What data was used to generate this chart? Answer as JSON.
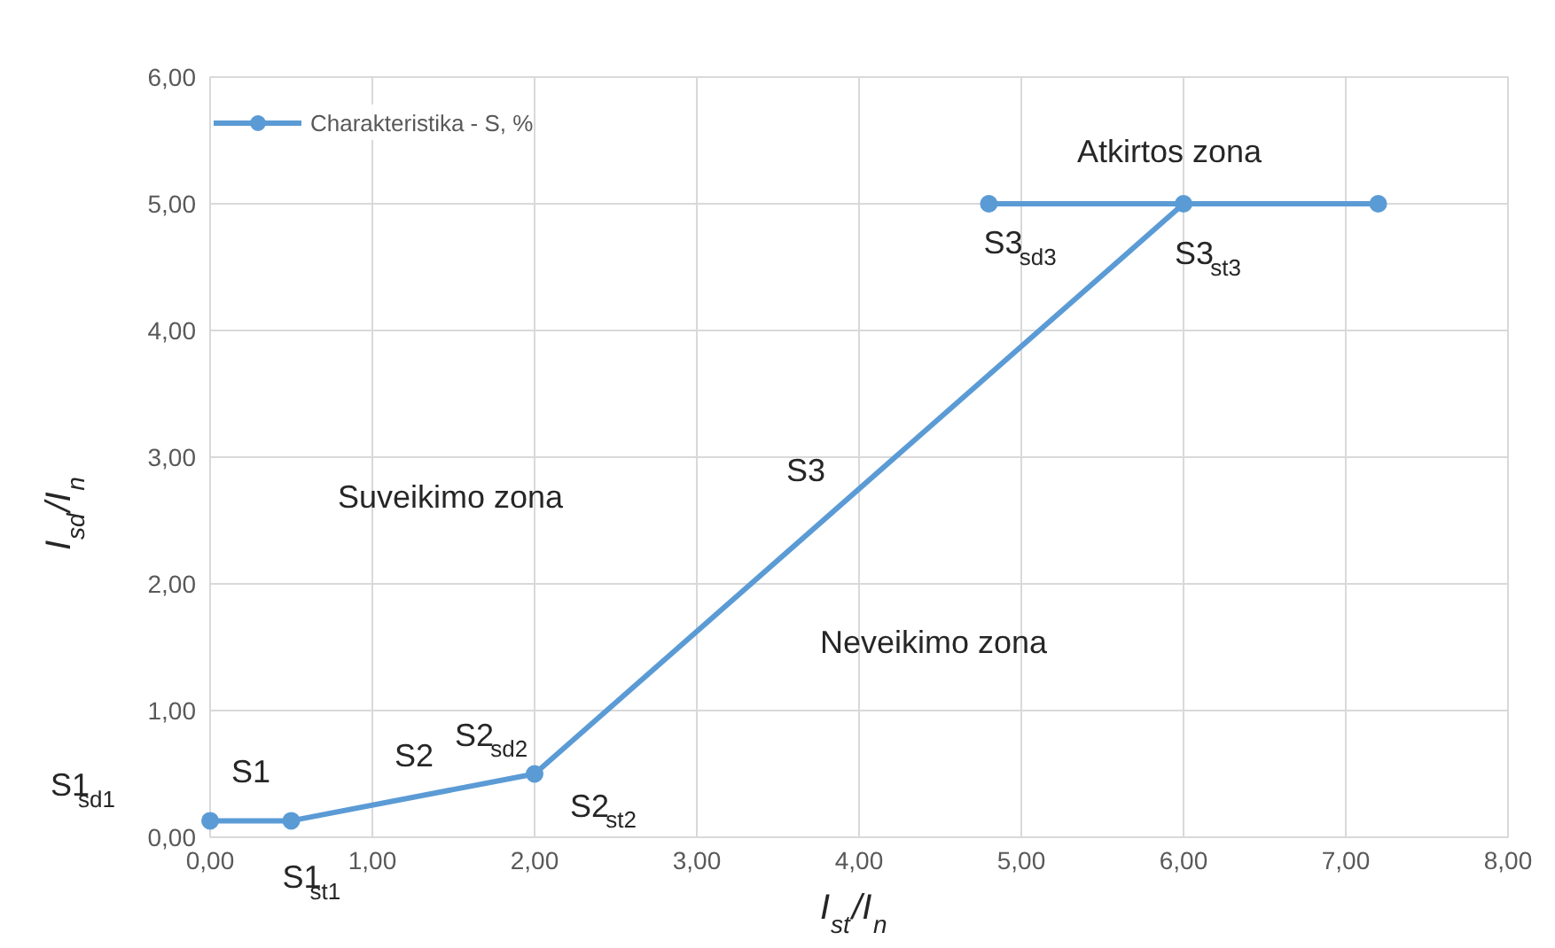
{
  "chart_data": {
    "type": "line",
    "xlabel": "I$_{st}$/I$_{n}$",
    "ylabel": "I$_{sd}$/I$_{n}$",
    "series": [
      {
        "name": "Charakteristika - S, %",
        "color": "#5b9bd5",
        "x": [
          0,
          0.5,
          2,
          6,
          4.8,
          7.2
        ],
        "values": [
          0.13,
          0.13,
          0.5,
          5,
          5,
          5
        ]
      }
    ],
    "xlim": [
      0,
      8
    ],
    "ylim": [
      0,
      6
    ],
    "xticks": [
      {
        "value": 0,
        "label": "0,00"
      },
      {
        "value": 1,
        "label": "1,00"
      },
      {
        "value": 2,
        "label": "2,00"
      },
      {
        "value": 3,
        "label": "3,00"
      },
      {
        "value": 4,
        "label": "4,00"
      },
      {
        "value": 5,
        "label": "5,00"
      },
      {
        "value": 6,
        "label": "6,00"
      },
      {
        "value": 7,
        "label": "7,00"
      },
      {
        "value": 8,
        "label": "8,00"
      }
    ],
    "yticks": [
      {
        "value": 0,
        "label": "0,00"
      },
      {
        "value": 1,
        "label": "1,00"
      },
      {
        "value": 2,
        "label": "2,00"
      },
      {
        "value": 3,
        "label": "3,00"
      },
      {
        "value": 4,
        "label": "4,00"
      },
      {
        "value": 5,
        "label": "5,00"
      },
      {
        "value": 6,
        "label": "6,00"
      }
    ],
    "annotations": [
      "Atkirtos zona",
      "Suveikimo zona",
      "Neveikimo zona",
      "S3",
      "S2",
      "S1",
      {
        "text": "S1$_{sd1}$",
        "x": 0,
        "y": 0.13
      },
      {
        "text": "S1$_{st1}$",
        "x": 0.5,
        "y": 0.13
      },
      {
        "text": "S2$_{sd2}$",
        "x": 2,
        "y": 0.5
      },
      {
        "text": "S2$_{st2}$",
        "x": 2,
        "y": 0.5
      },
      {
        "text": "S3$_{sd3}$",
        "x": 4.8,
        "y": 5
      },
      {
        "text": "S3$_{st3}$",
        "x": 6,
        "y": 5
      }
    ],
    "grid": true,
    "legend": "top left",
    "marker": "circle",
    "line_style": "solid"
  }
}
